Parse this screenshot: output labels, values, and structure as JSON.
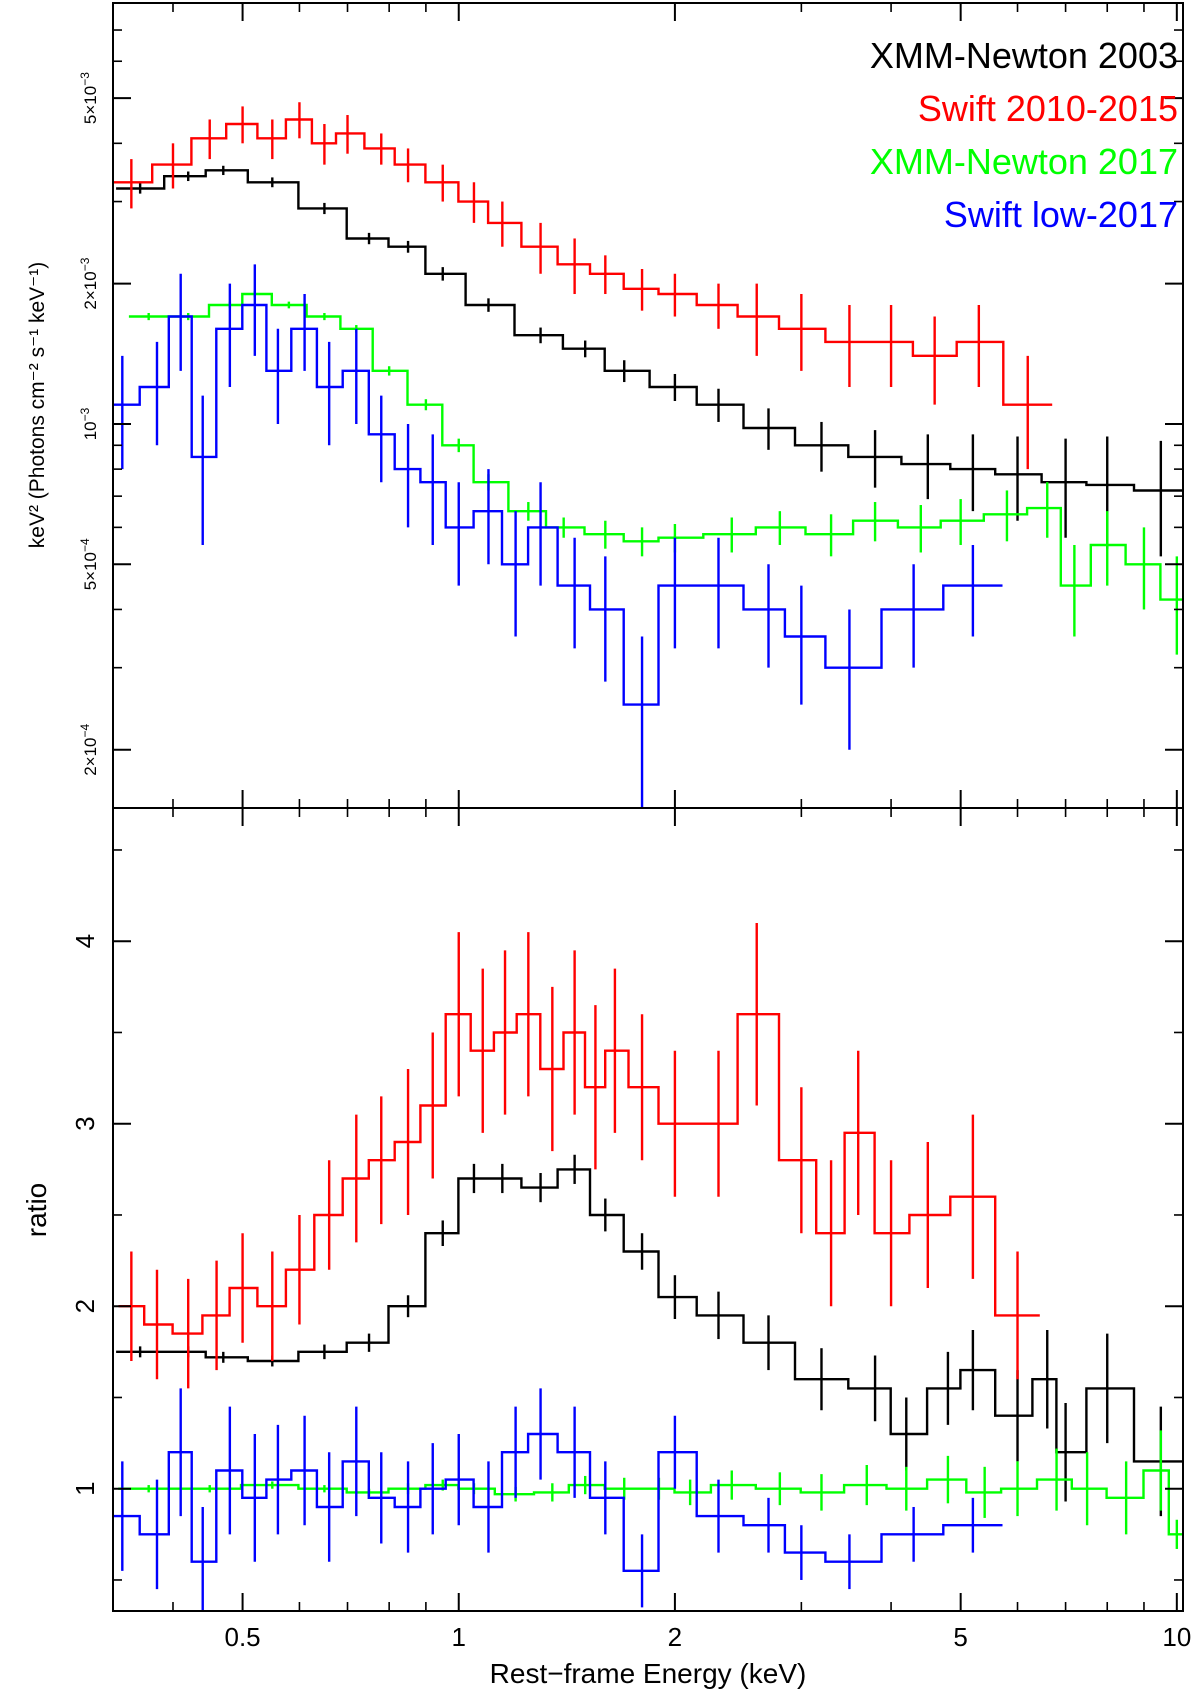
{
  "chart_data": [
    {
      "type": "line",
      "panel": "top",
      "title": "",
      "xlabel": "",
      "ylabel": "keV² (Photons cm⁻² s⁻¹ keV⁻¹)",
      "xscale": "log",
      "yscale": "log",
      "xlim": [
        0.33,
        10.2
      ],
      "ylim": [
        0.00015,
        0.008
      ],
      "x_ticks": [
        0.5,
        1,
        2,
        5,
        10
      ],
      "y_tick_labels": [
        {
          "value": 0.0002,
          "mantissa": "2×10",
          "exp": "−4"
        },
        {
          "value": 0.0005,
          "mantissa": "5×10",
          "exp": "−4"
        },
        {
          "value": 0.001,
          "mantissa": "10",
          "exp": "−3"
        },
        {
          "value": 0.002,
          "mantissa": "2×10",
          "exp": "−3"
        },
        {
          "value": 0.005,
          "mantissa": "5×10",
          "exp": "−3"
        }
      ],
      "legend_position": "top-right",
      "series": [
        {
          "name": "XMM-Newton 2003",
          "color": "#000000",
          "x": [
            0.36,
            0.42,
            0.47,
            0.55,
            0.65,
            0.75,
            0.85,
            0.95,
            1.1,
            1.3,
            1.5,
            1.7,
            2.0,
            2.3,
            2.7,
            3.2,
            3.8,
            4.5,
            5.2,
            6.0,
            7.0,
            8.0,
            9.5
          ],
          "y": [
            0.0032,
            0.0034,
            0.0035,
            0.0033,
            0.0029,
            0.0025,
            0.0024,
            0.0021,
            0.0018,
            0.00155,
            0.00145,
            0.0013,
            0.0012,
            0.0011,
            0.00098,
            0.0009,
            0.00085,
            0.00082,
            0.0008,
            0.00078,
            0.00075,
            0.00074,
            0.00072
          ],
          "err": [
            8e-05,
            8e-05,
            8e-05,
            8e-05,
            8e-05,
            7e-05,
            7e-05,
            7e-05,
            6e-05,
            6e-05,
            6e-05,
            7e-05,
            8e-05,
            9e-05,
            0.0001,
            0.00011,
            0.00012,
            0.00013,
            0.00015,
            0.00016,
            0.00018,
            0.0002,
            0.0002
          ]
        },
        {
          "name": "Swift 2010-2015",
          "color": "#ff0000",
          "x": [
            0.35,
            0.4,
            0.45,
            0.5,
            0.55,
            0.6,
            0.65,
            0.7,
            0.78,
            0.85,
            0.95,
            1.05,
            1.15,
            1.3,
            1.45,
            1.6,
            1.8,
            2.0,
            2.3,
            2.6,
            3.0,
            3.5,
            4.0,
            4.6,
            5.3,
            6.2
          ],
          "y": [
            0.0033,
            0.0036,
            0.0041,
            0.0044,
            0.0041,
            0.0045,
            0.004,
            0.0042,
            0.0039,
            0.0036,
            0.0033,
            0.003,
            0.0027,
            0.0024,
            0.0022,
            0.0021,
            0.00195,
            0.0019,
            0.0018,
            0.0017,
            0.0016,
            0.0015,
            0.0015,
            0.0014,
            0.0015,
            0.0011
          ],
          "err": [
            0.0004,
            0.0004,
            0.0004,
            0.0004,
            0.0004,
            0.0004,
            0.0004,
            0.0004,
            0.0003,
            0.0003,
            0.0003,
            0.0003,
            0.0003,
            0.0003,
            0.0003,
            0.0002,
            0.0002,
            0.0002,
            0.0002,
            0.0003,
            0.0003,
            0.0003,
            0.0003,
            0.0003,
            0.0003,
            0.0003
          ]
        },
        {
          "name": "XMM-Newton 2017",
          "color": "#00ff00",
          "x": [
            0.37,
            0.42,
            0.48,
            0.52,
            0.58,
            0.65,
            0.72,
            0.8,
            0.9,
            1.0,
            1.1,
            1.25,
            1.4,
            1.6,
            1.8,
            2.0,
            2.4,
            2.8,
            3.3,
            3.8,
            4.4,
            5.0,
            5.8,
            6.6,
            7.2,
            8.0,
            9.0,
            10.0
          ],
          "y": [
            0.0017,
            0.0017,
            0.0018,
            0.0019,
            0.0018,
            0.0017,
            0.0016,
            0.0013,
            0.0011,
            0.0009,
            0.00075,
            0.00065,
            0.0006,
            0.00058,
            0.00056,
            0.00057,
            0.00058,
            0.0006,
            0.00058,
            0.00062,
            0.0006,
            0.00062,
            0.00064,
            0.00066,
            0.00045,
            0.00055,
            0.0005,
            0.00042
          ],
          "err": [
            3e-05,
            3e-05,
            3e-05,
            3e-05,
            3e-05,
            3e-05,
            3e-05,
            3e-05,
            3e-05,
            3e-05,
            3e-05,
            3e-05,
            3e-05,
            4e-05,
            4e-05,
            4e-05,
            5e-05,
            5e-05,
            6e-05,
            6e-05,
            7e-05,
            7e-05,
            8e-05,
            9e-05,
            0.0001,
            0.0001,
            0.0001,
            0.0001
          ]
        },
        {
          "name": "Swift low-2017",
          "color": "#0000ff",
          "x": [
            0.34,
            0.38,
            0.41,
            0.44,
            0.48,
            0.52,
            0.56,
            0.61,
            0.66,
            0.72,
            0.78,
            0.85,
            0.92,
            1.0,
            1.1,
            1.2,
            1.3,
            1.45,
            1.6,
            1.8,
            2.0,
            2.3,
            2.7,
            3.0,
            3.5,
            4.3,
            5.2
          ],
          "y": [
            0.0011,
            0.0012,
            0.0017,
            0.00085,
            0.0016,
            0.0018,
            0.0013,
            0.0016,
            0.0012,
            0.0013,
            0.00095,
            0.0008,
            0.00075,
            0.0006,
            0.00065,
            0.0005,
            0.0006,
            0.00045,
            0.0004,
            0.00025,
            0.00045,
            0.00045,
            0.0004,
            0.00035,
            0.0003,
            0.0004,
            0.00045
          ],
          "err": [
            0.0003,
            0.0003,
            0.0004,
            0.0003,
            0.0004,
            0.0004,
            0.0003,
            0.0003,
            0.0003,
            0.0003,
            0.0002,
            0.0002,
            0.0002,
            0.00015,
            0.00015,
            0.00015,
            0.00015,
            0.00012,
            0.00012,
            0.0001,
            0.00012,
            0.00012,
            0.0001,
            0.0001,
            0.0001,
            0.0001,
            0.0001
          ]
        }
      ]
    },
    {
      "type": "line",
      "panel": "bottom",
      "title": "",
      "xlabel": "Rest−frame Energy (keV)",
      "ylabel": "ratio",
      "xscale": "log",
      "yscale": "linear",
      "xlim": [
        0.33,
        10.2
      ],
      "ylim": [
        0.33,
        4.73
      ],
      "x_ticks": [
        0.5,
        1,
        2,
        5,
        10
      ],
      "x_tick_labels": [
        "0.5",
        "1",
        "2",
        "5",
        "10"
      ],
      "y_ticks": [
        1,
        2,
        3,
        4
      ],
      "y_tick_labels": [
        "1",
        "2",
        "3",
        "4"
      ],
      "series": [
        {
          "name": "XMM-Newton 2003",
          "color": "#000000",
          "x": [
            0.36,
            0.42,
            0.47,
            0.55,
            0.65,
            0.75,
            0.85,
            0.95,
            1.05,
            1.15,
            1.3,
            1.45,
            1.6,
            1.8,
            2.0,
            2.3,
            2.7,
            3.2,
            3.8,
            4.2,
            4.8,
            5.2,
            6.0,
            6.6,
            7.0,
            8.0,
            9.5
          ],
          "y": [
            1.75,
            1.75,
            1.72,
            1.7,
            1.75,
            1.8,
            2.0,
            2.4,
            2.7,
            2.7,
            2.65,
            2.75,
            2.5,
            2.3,
            2.05,
            1.95,
            1.8,
            1.6,
            1.55,
            1.3,
            1.55,
            1.65,
            1.4,
            1.6,
            1.2,
            1.55,
            1.15
          ],
          "err": [
            0.03,
            0.03,
            0.03,
            0.03,
            0.04,
            0.05,
            0.06,
            0.07,
            0.08,
            0.08,
            0.08,
            0.08,
            0.09,
            0.1,
            0.12,
            0.13,
            0.15,
            0.17,
            0.18,
            0.2,
            0.2,
            0.22,
            0.25,
            0.27,
            0.27,
            0.3,
            0.3
          ]
        },
        {
          "name": "Swift 2010-2015",
          "color": "#ff0000",
          "x": [
            0.35,
            0.38,
            0.42,
            0.46,
            0.5,
            0.55,
            0.6,
            0.66,
            0.72,
            0.78,
            0.85,
            0.92,
            1.0,
            1.08,
            1.16,
            1.25,
            1.35,
            1.45,
            1.55,
            1.65,
            1.8,
            2.0,
            2.3,
            2.6,
            3.0,
            3.3,
            3.6,
            4.0,
            4.5,
            5.2,
            6.0
          ],
          "y": [
            2.0,
            1.9,
            1.85,
            1.95,
            2.1,
            2.0,
            2.2,
            2.5,
            2.7,
            2.8,
            2.9,
            3.1,
            3.6,
            3.4,
            3.5,
            3.6,
            3.3,
            3.5,
            3.2,
            3.4,
            3.2,
            3.0,
            3.0,
            3.6,
            2.8,
            2.4,
            2.95,
            2.4,
            2.5,
            2.6,
            1.95
          ],
          "err": [
            0.3,
            0.3,
            0.3,
            0.3,
            0.3,
            0.3,
            0.3,
            0.3,
            0.35,
            0.35,
            0.4,
            0.4,
            0.45,
            0.45,
            0.45,
            0.45,
            0.45,
            0.45,
            0.45,
            0.45,
            0.4,
            0.4,
            0.4,
            0.5,
            0.4,
            0.4,
            0.45,
            0.4,
            0.4,
            0.45,
            0.35
          ]
        },
        {
          "name": "XMM-Newton 2017",
          "color": "#00ff00",
          "x": [
            0.37,
            0.45,
            0.55,
            0.65,
            0.75,
            0.85,
            0.95,
            1.05,
            1.2,
            1.35,
            1.5,
            1.7,
            1.9,
            2.1,
            2.4,
            2.8,
            3.2,
            3.7,
            4.2,
            4.8,
            5.4,
            6.0,
            6.8,
            7.5,
            8.5,
            9.5,
            10.0
          ],
          "y": [
            1.0,
            1.0,
            1.02,
            1.0,
            0.98,
            1.0,
            1.02,
            1.0,
            0.97,
            0.98,
            1.02,
            1.0,
            1.0,
            0.98,
            1.02,
            1.0,
            0.98,
            1.02,
            1.0,
            1.05,
            0.98,
            1.0,
            1.05,
            1.0,
            0.95,
            1.1,
            0.75
          ],
          "err": [
            0.02,
            0.02,
            0.02,
            0.02,
            0.02,
            0.03,
            0.03,
            0.03,
            0.04,
            0.05,
            0.05,
            0.06,
            0.06,
            0.07,
            0.08,
            0.09,
            0.1,
            0.11,
            0.12,
            0.13,
            0.14,
            0.15,
            0.17,
            0.2,
            0.2,
            0.22,
            0.08
          ]
        },
        {
          "name": "Swift low-2017",
          "color": "#0000ff",
          "x": [
            0.34,
            0.38,
            0.41,
            0.44,
            0.48,
            0.52,
            0.56,
            0.61,
            0.66,
            0.72,
            0.78,
            0.85,
            0.92,
            1.0,
            1.1,
            1.2,
            1.3,
            1.45,
            1.6,
            1.8,
            2.0,
            2.3,
            2.7,
            3.0,
            3.5,
            4.3,
            5.2
          ],
          "y": [
            0.85,
            0.75,
            1.2,
            0.6,
            1.1,
            0.95,
            1.05,
            1.1,
            0.9,
            1.15,
            0.95,
            0.9,
            1.0,
            1.05,
            0.9,
            1.2,
            1.3,
            1.2,
            0.95,
            0.55,
            1.2,
            0.85,
            0.8,
            0.65,
            0.6,
            0.75,
            0.8
          ],
          "err": [
            0.3,
            0.3,
            0.35,
            0.3,
            0.35,
            0.35,
            0.3,
            0.3,
            0.3,
            0.3,
            0.25,
            0.25,
            0.25,
            0.25,
            0.25,
            0.25,
            0.25,
            0.25,
            0.2,
            0.2,
            0.2,
            0.2,
            0.15,
            0.15,
            0.15,
            0.15,
            0.15
          ]
        }
      ]
    }
  ]
}
